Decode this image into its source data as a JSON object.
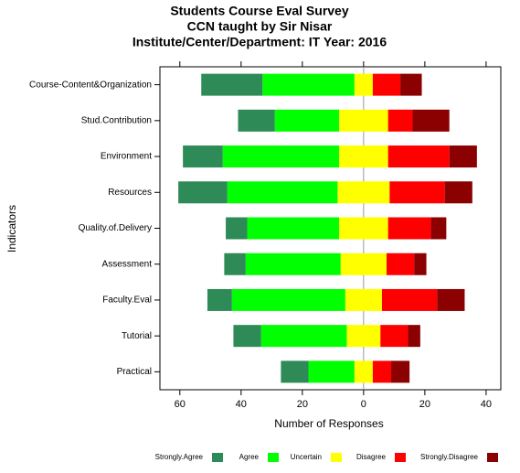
{
  "chart_data": {
    "type": "diverging-bar",
    "title": [
      "Students Course Eval Survey",
      "CCN taught by Sir Nisar",
      "Institute/Center/Department: IT Year: 2016"
    ],
    "x_label": "Number of Responses",
    "y_label": "Indicators",
    "categories": [
      "Course-Content&Organization",
      "Stud.Contribution",
      "Environment",
      "Resources",
      "Quality.of.Delivery",
      "Assessment",
      "Faculty.Eval",
      "Tutorial",
      "Practical"
    ],
    "series": [
      {
        "name": "Strongly.Agree",
        "color": "#2e8b57",
        "side": "left",
        "values": [
          20,
          12,
          13,
          16,
          7,
          7,
          8,
          9,
          9
        ]
      },
      {
        "name": "Agree",
        "color": "#00ff00",
        "side": "left",
        "values": [
          30,
          21,
          38,
          36,
          30,
          31,
          37,
          28,
          15
        ]
      },
      {
        "name": "Uncertain",
        "color": "#ffff00",
        "side": "center",
        "values": [
          6,
          16,
          16,
          17,
          16,
          15,
          12,
          11,
          6
        ]
      },
      {
        "name": "Disagree",
        "color": "#ff0000",
        "side": "right",
        "values": [
          9,
          8,
          20,
          18,
          14,
          9,
          18,
          9,
          6
        ]
      },
      {
        "name": "Strongly.Disagree",
        "color": "#8b0000",
        "side": "right",
        "values": [
          7,
          12,
          9,
          9,
          5,
          4,
          9,
          4,
          6
        ]
      }
    ],
    "xlim": [
      -66.5,
      44.8
    ],
    "xticks": [
      {
        "value": -60,
        "label": "60"
      },
      {
        "value": -40,
        "label": "40"
      },
      {
        "value": -20,
        "label": "20"
      },
      0,
      20,
      40
    ]
  }
}
